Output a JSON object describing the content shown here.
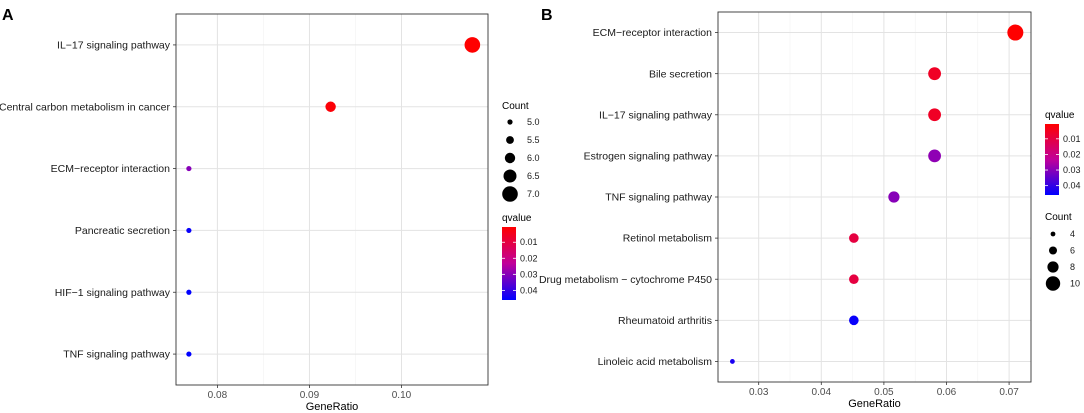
{
  "chart_data": [
    {
      "panel": "A",
      "type": "scatter",
      "subtype": "dotplot",
      "xlabel": "GeneRatio",
      "xlim": [
        0.0755,
        0.1094
      ],
      "xticks": [
        0.08,
        0.09,
        0.1
      ],
      "xtick_labels": [
        "0.08",
        "0.09",
        "0.10"
      ],
      "categories": [
        "IL−17 signaling pathway",
        "Central carbon metabolism in cancer",
        "ECM−receptor interaction",
        "Pancreatic secretion",
        "HIF−1 signaling pathway",
        "TNF signaling pathway"
      ],
      "points": [
        {
          "category": "IL−17 signaling pathway",
          "x": 0.1077,
          "count": 7,
          "qvalue": 0.0005
        },
        {
          "category": "Central carbon metabolism in cancer",
          "x": 0.0923,
          "count": 6,
          "qvalue": 0.0015
        },
        {
          "category": "ECM−receptor interaction",
          "x": 0.0769,
          "count": 5,
          "qvalue": 0.03
        },
        {
          "category": "Pancreatic secretion",
          "x": 0.0769,
          "count": 5,
          "qvalue": 0.045
        },
        {
          "category": "HIF−1 signaling pathway",
          "x": 0.0769,
          "count": 5,
          "qvalue": 0.046
        },
        {
          "category": "TNF signaling pathway",
          "x": 0.0769,
          "count": 5,
          "qvalue": 0.046
        }
      ],
      "legend_order": [
        "size",
        "color"
      ],
      "size_legend": {
        "title": "Count",
        "values": [
          5.0,
          5.5,
          6.0,
          6.5,
          7.0
        ],
        "labels": [
          "5.0",
          "5.5",
          "6.0",
          "6.5",
          "7.0"
        ]
      },
      "color_legend": {
        "title": "qvalue",
        "range": [
          0.0005,
          0.046
        ],
        "ticks": [
          0.01,
          0.02,
          0.03,
          0.04
        ],
        "labels": [
          "0.01",
          "0.02",
          "0.03",
          "0.04"
        ],
        "low_color": "#ff0000",
        "high_color": "#0000ff"
      }
    },
    {
      "panel": "B",
      "type": "scatter",
      "subtype": "dotplot",
      "xlabel": "GeneRatio",
      "xlim": [
        0.0235,
        0.0735
      ],
      "xticks": [
        0.03,
        0.04,
        0.05,
        0.06,
        0.07
      ],
      "xtick_labels": [
        "0.03",
        "0.04",
        "0.05",
        "0.06",
        "0.07"
      ],
      "categories": [
        "ECM−receptor interaction",
        "Bile secretion",
        "IL−17 signaling pathway",
        "Estrogen signaling pathway",
        "TNF signaling pathway",
        "Retinol metabolism",
        "Drug metabolism − cytochrome P450",
        "Rheumatoid arthritis",
        "Linoleic acid metabolism"
      ],
      "points": [
        {
          "category": "ECM−receptor interaction",
          "x": 0.071,
          "count": 11,
          "qvalue": 0.0005
        },
        {
          "category": "Bile secretion",
          "x": 0.0581,
          "count": 9,
          "qvalue": 0.006
        },
        {
          "category": "IL−17 signaling pathway",
          "x": 0.0581,
          "count": 9,
          "qvalue": 0.006
        },
        {
          "category": "Estrogen signaling pathway",
          "x": 0.0581,
          "count": 9,
          "qvalue": 0.029
        },
        {
          "category": "TNF signaling pathway",
          "x": 0.0516,
          "count": 8,
          "qvalue": 0.03
        },
        {
          "category": "Retinol metabolism",
          "x": 0.0452,
          "count": 7,
          "qvalue": 0.01
        },
        {
          "category": "Drug metabolism − cytochrome P450",
          "x": 0.0452,
          "count": 7,
          "qvalue": 0.01
        },
        {
          "category": "Rheumatoid arthritis",
          "x": 0.0452,
          "count": 7,
          "qvalue": 0.045
        },
        {
          "category": "Linoleic acid metabolism",
          "x": 0.0258,
          "count": 4,
          "qvalue": 0.043
        }
      ],
      "legend_order": [
        "color",
        "size"
      ],
      "size_legend": {
        "title": "Count",
        "values": [
          4,
          6,
          8,
          10
        ],
        "labels": [
          "4",
          "6",
          "8",
          "10"
        ]
      },
      "color_legend": {
        "title": "qvalue",
        "range": [
          0.0005,
          0.046
        ],
        "ticks": [
          0.01,
          0.02,
          0.03,
          0.04
        ],
        "labels": [
          "0.01",
          "0.02",
          "0.03",
          "0.04"
        ],
        "low_color": "#ff0000",
        "high_color": "#0000ff"
      }
    }
  ]
}
